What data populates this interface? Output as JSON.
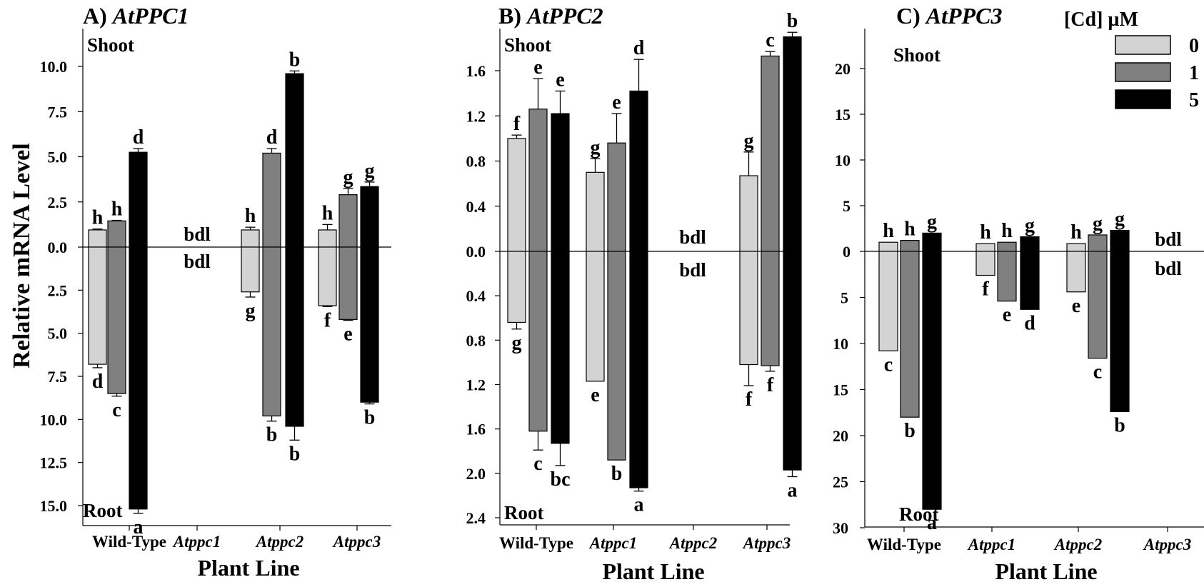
{
  "y_axis_label": "Relative mRNA Level",
  "x_axis_label": "Plant Line",
  "legend": {
    "title": "[Cd] µM",
    "entries": [
      {
        "label": "0",
        "color": "#d3d3d3"
      },
      {
        "label": "1",
        "color": "#808080"
      },
      {
        "label": "5",
        "color": "#000000"
      }
    ]
  },
  "chart_data": [
    {
      "type": "bar",
      "panel": "A)",
      "gene": "AtPPC1",
      "title": "A) AtPPC1",
      "categories": [
        "Wild-Type",
        "Atppc1",
        "Atppc2",
        "Atppc3"
      ],
      "category_italic": [
        false,
        true,
        true,
        true
      ],
      "shoot_label": "Shoot",
      "root_label": "Root",
      "bdl_label": "bdl",
      "bdl_category": 1,
      "shoot_ticks": [
        "0.0",
        "2.5",
        "5.0",
        "7.5",
        "10.0"
      ],
      "root_ticks": [
        "2.5",
        "5.0",
        "7.5",
        "10.0",
        "12.5",
        "15.0"
      ],
      "shoot_ylim": [
        0,
        10.0
      ],
      "root_ylim": [
        0,
        15.0
      ],
      "series": [
        {
          "name": "0",
          "shoot": [
            0.95,
            null,
            0.95,
            0.95
          ],
          "shoot_err": [
            0.05,
            null,
            0.15,
            0.3
          ],
          "shoot_letters": [
            "h",
            "",
            "h",
            "h"
          ],
          "root": [
            6.8,
            null,
            2.6,
            3.4
          ],
          "root_err": [
            0.2,
            null,
            0.3,
            0.05
          ],
          "root_letters": [
            "d",
            "",
            "g",
            "f"
          ]
        },
        {
          "name": "1",
          "shoot": [
            1.45,
            null,
            5.2,
            2.9
          ],
          "shoot_err": [
            0.03,
            null,
            0.25,
            0.35
          ],
          "shoot_letters": [
            "h",
            "",
            "d",
            "g"
          ],
          "root": [
            8.5,
            null,
            9.8,
            4.2
          ],
          "root_err": [
            0.15,
            null,
            0.3,
            0.05
          ],
          "root_letters": [
            "c",
            "",
            "b",
            "e"
          ]
        },
        {
          "name": "5",
          "shoot": [
            5.25,
            null,
            9.6,
            3.35
          ],
          "shoot_err": [
            0.2,
            null,
            0.15,
            0.25
          ],
          "shoot_letters": [
            "d",
            "",
            "b",
            "g"
          ],
          "root": [
            15.2,
            null,
            10.4,
            9.0
          ],
          "root_err": [
            0.25,
            null,
            0.8,
            0.1
          ],
          "root_letters": [
            "a",
            "",
            "b",
            "b"
          ]
        }
      ]
    },
    {
      "type": "bar",
      "panel": "B)",
      "gene": "AtPPC2",
      "title": "B) AtPPC2",
      "categories": [
        "Wild-Type",
        "Atppc1",
        "Atppc2",
        "Atppc3"
      ],
      "category_italic": [
        false,
        true,
        true,
        true
      ],
      "shoot_label": "Shoot",
      "root_label": "Root",
      "bdl_label": "bdl",
      "bdl_category": 2,
      "shoot_ticks": [
        "0.0",
        "0.4",
        "0.8",
        "1.2",
        "1.6"
      ],
      "root_ticks": [
        "0.4",
        "0.8",
        "1.2",
        "1.6",
        "2.0",
        "2.4"
      ],
      "shoot_ylim": [
        0,
        1.6
      ],
      "root_ylim": [
        0,
        2.4
      ],
      "series": [
        {
          "name": "0",
          "shoot": [
            1.0,
            0.7,
            null,
            0.67
          ],
          "shoot_err": [
            0.03,
            0.12,
            null,
            0.21
          ],
          "shoot_letters": [
            "f",
            "g",
            "",
            "g"
          ],
          "root": [
            0.64,
            1.17,
            null,
            1.02
          ],
          "root_err": [
            0.06,
            0.0,
            null,
            0.19
          ],
          "root_letters": [
            "g",
            "e",
            "",
            "f"
          ]
        },
        {
          "name": "1",
          "shoot": [
            1.26,
            0.96,
            null,
            1.73
          ],
          "shoot_err": [
            0.27,
            0.26,
            null,
            0.04
          ],
          "shoot_letters": [
            "e",
            "e",
            "",
            "c"
          ],
          "root": [
            1.62,
            1.88,
            null,
            1.03
          ],
          "root_err": [
            0.17,
            0.0,
            null,
            0.05
          ],
          "root_letters": [
            "c",
            "b",
            "",
            "f"
          ]
        },
        {
          "name": "5",
          "shoot": [
            1.22,
            1.42,
            null,
            1.9
          ],
          "shoot_err": [
            0.2,
            0.28,
            null,
            0.04
          ],
          "shoot_letters": [
            "e",
            "d",
            "",
            "b"
          ],
          "root": [
            1.73,
            2.13,
            null,
            1.97
          ],
          "root_err": [
            0.2,
            0.03,
            null,
            0.06
          ],
          "root_letters": [
            "bc",
            "a",
            "",
            "a"
          ]
        }
      ]
    },
    {
      "type": "bar",
      "panel": "C)",
      "gene": "AtPPC3",
      "title": "C) AtPPC3",
      "categories": [
        "Wild-Type",
        "Atppc1",
        "Atppc2",
        "Atppc3"
      ],
      "category_italic": [
        false,
        true,
        true,
        true
      ],
      "shoot_label": "Shoot",
      "root_label": "Root",
      "bdl_label": "bdl",
      "bdl_category": 3,
      "shoot_ticks": [
        "0",
        "5",
        "10",
        "15",
        "20"
      ],
      "root_ticks": [
        "5",
        "10",
        "15",
        "20",
        "25",
        "30"
      ],
      "shoot_ylim": [
        0,
        20
      ],
      "root_ylim": [
        0,
        30
      ],
      "series": [
        {
          "name": "0",
          "shoot": [
            1.0,
            0.85,
            0.85,
            null
          ],
          "shoot_err": [
            0,
            0,
            0,
            null
          ],
          "shoot_letters": [
            "h",
            "h",
            "h",
            ""
          ],
          "root": [
            10.8,
            2.6,
            4.4,
            null
          ],
          "root_err": [
            0,
            0,
            0,
            null
          ],
          "root_letters": [
            "c",
            "f",
            "e",
            ""
          ]
        },
        {
          "name": "1",
          "shoot": [
            1.2,
            1.0,
            1.8,
            null
          ],
          "shoot_err": [
            0,
            0,
            0,
            null
          ],
          "shoot_letters": [
            "h",
            "h",
            "g",
            ""
          ],
          "root": [
            18.0,
            5.4,
            11.6,
            null
          ],
          "root_err": [
            0,
            0,
            0,
            null
          ],
          "root_letters": [
            "b",
            "e",
            "c",
            ""
          ]
        },
        {
          "name": "5",
          "shoot": [
            2.0,
            1.6,
            2.3,
            null
          ],
          "shoot_err": [
            0,
            0,
            0,
            null
          ],
          "shoot_letters": [
            "g",
            "g",
            "g",
            ""
          ],
          "root": [
            28.0,
            6.3,
            17.4,
            null
          ],
          "root_err": [
            0,
            0,
            0,
            null
          ],
          "root_letters": [
            "a",
            "d",
            "b",
            ""
          ]
        }
      ]
    }
  ]
}
